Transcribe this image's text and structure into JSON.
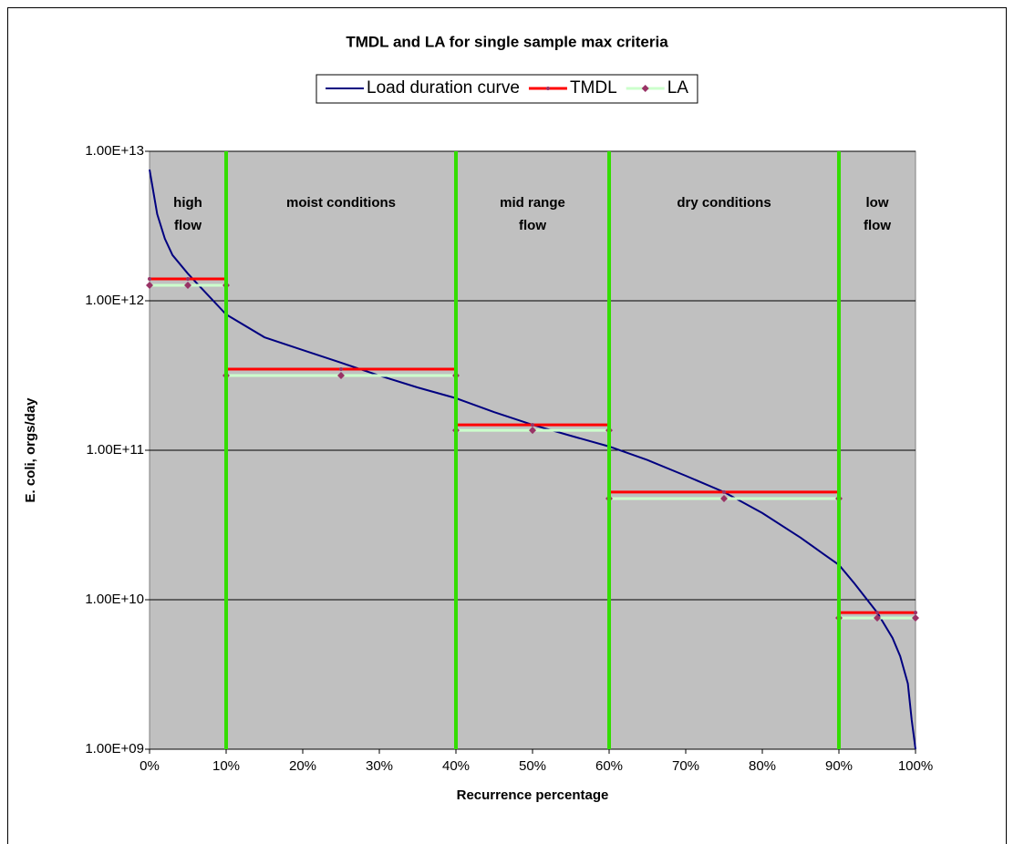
{
  "chart_data": {
    "type": "line",
    "title": "TMDL and LA for single sample max criteria",
    "x_label": "Recurrence percentage",
    "y_label": "E. coli, orgs/day",
    "xlim": [
      0,
      100
    ],
    "ylim": [
      1000000000.0,
      10000000000000.0
    ],
    "log_y": true,
    "grid": true,
    "plot_background": "#c0c0c0",
    "xticks": [
      {
        "value": 0,
        "label": "0%"
      },
      {
        "value": 10,
        "label": "10%"
      },
      {
        "value": 20,
        "label": "20%"
      },
      {
        "value": 30,
        "label": "30%"
      },
      {
        "value": 40,
        "label": "40%"
      },
      {
        "value": 50,
        "label": "50%"
      },
      {
        "value": 60,
        "label": "60%"
      },
      {
        "value": 70,
        "label": "70%"
      },
      {
        "value": 80,
        "label": "80%"
      },
      {
        "value": 90,
        "label": "90%"
      },
      {
        "value": 100,
        "label": "100%"
      }
    ],
    "yticks": [
      {
        "value": 1000000000.0,
        "label": "1.00E+09"
      },
      {
        "value": 10000000000.0,
        "label": "1.00E+10"
      },
      {
        "value": 100000000000.0,
        "label": "1.00E+11"
      },
      {
        "value": 1000000000000.0,
        "label": "1.00E+12"
      },
      {
        "value": 10000000000000.0,
        "label": "1.00E+13"
      }
    ],
    "zone_boundary_color": "#33dd00",
    "zones": [
      {
        "label": [
          "high",
          "flow"
        ],
        "x": [
          0,
          10
        ]
      },
      {
        "label": [
          "moist conditions"
        ],
        "x": [
          10,
          40
        ]
      },
      {
        "label": [
          "mid range",
          "flow"
        ],
        "x": [
          40,
          60
        ]
      },
      {
        "label": [
          "dry conditions"
        ],
        "x": [
          60,
          90
        ]
      },
      {
        "label": [
          "low",
          "flow"
        ],
        "x": [
          90,
          100
        ]
      }
    ],
    "series": [
      {
        "name": "Load duration curve",
        "color": "#000080",
        "marker": "none",
        "x": [
          0,
          1,
          2,
          3,
          5,
          7,
          10,
          15,
          20,
          25,
          30,
          35,
          40,
          45,
          50,
          55,
          60,
          65,
          70,
          75,
          80,
          85,
          88,
          90,
          92,
          95,
          97,
          98,
          99,
          99.5,
          100
        ],
        "values": [
          7550000000000.0,
          3800000000000.0,
          2600000000000.0,
          2020000000000.0,
          1520000000000.0,
          1180000000000.0,
          810000000000.0,
          570000000000.0,
          468000000000.0,
          385000000000.0,
          316000000000.0,
          263000000000.0,
          223000000000.0,
          180000000000.0,
          148000000000.0,
          125000000000.0,
          106000000000.0,
          86000000000.0,
          67500000000.0,
          52500000000.0,
          38000000000.0,
          26000000000.0,
          20200000000.0,
          17100000000.0,
          12900000000.0,
          8200000000.0,
          5550000000.0,
          4190000000.0,
          2750000000.0,
          1570000000.0,
          1000000000.0
        ]
      },
      {
        "name": "TMDL",
        "color": "#ff0000",
        "marker": "dot",
        "marker_color": "#993366",
        "x": [
          0,
          5,
          10,
          10,
          10,
          25,
          40,
          40,
          40,
          50,
          60,
          60,
          60,
          75,
          90,
          90,
          90,
          95,
          100
        ],
        "values": [
          1400000000000.0,
          1400000000000.0,
          1400000000000.0,
          null,
          349000000000.0,
          349000000000.0,
          349000000000.0,
          null,
          148000000000.0,
          148000000000.0,
          148000000000.0,
          null,
          52500000000.0,
          52500000000.0,
          52500000000.0,
          null,
          8200000000.0,
          8200000000.0,
          8200000000.0
        ]
      },
      {
        "name": "LA",
        "color": "#ccffcc",
        "marker": "diamond",
        "marker_color": "#993366",
        "x": [
          0,
          5,
          10,
          10,
          10,
          25,
          40,
          40,
          40,
          50,
          60,
          60,
          60,
          75,
          90,
          90,
          90,
          95,
          100
        ],
        "values": [
          1270000000000.0,
          1270000000000.0,
          1270000000000.0,
          null,
          316000000000.0,
          316000000000.0,
          316000000000.0,
          null,
          136000000000.0,
          136000000000.0,
          136000000000.0,
          null,
          47500000000.0,
          47500000000.0,
          47500000000.0,
          null,
          7550000000.0,
          7550000000.0,
          7550000000.0
        ]
      }
    ]
  }
}
